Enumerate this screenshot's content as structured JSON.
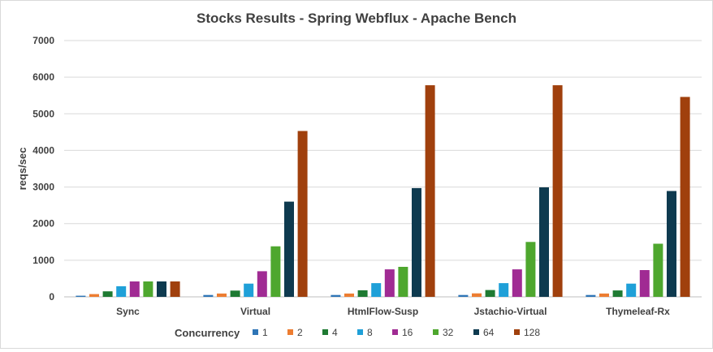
{
  "chart_data": {
    "type": "bar",
    "title": "Stocks Results - Spring Webflux - Apache Bench",
    "xlabel": "",
    "ylabel": "reqs/sec",
    "ylim": [
      0,
      7000
    ],
    "yticks": [
      0,
      1000,
      2000,
      3000,
      4000,
      5000,
      6000,
      7000
    ],
    "grid": true,
    "legend_title": "Concurrency",
    "legend_position": "bottom",
    "categories": [
      "Sync",
      "Virtual",
      "HtmlFlow-Susp",
      "Jstachio-Virtual",
      "Thymeleaf-Rx"
    ],
    "series": [
      {
        "name": "1",
        "color": "#2e75b6",
        "values": [
          30,
          50,
          50,
          50,
          50
        ]
      },
      {
        "name": "2",
        "color": "#ed7d31",
        "values": [
          75,
          90,
          90,
          95,
          90
        ]
      },
      {
        "name": "4",
        "color": "#1e7a32",
        "values": [
          150,
          170,
          180,
          185,
          175
        ]
      },
      {
        "name": "8",
        "color": "#1fa0d8",
        "values": [
          290,
          360,
          375,
          375,
          360
        ]
      },
      {
        "name": "16",
        "color": "#a02b93",
        "values": [
          420,
          700,
          750,
          750,
          730
        ]
      },
      {
        "name": "32",
        "color": "#4ea72e",
        "values": [
          420,
          1380,
          820,
          1500,
          1450
        ]
      },
      {
        "name": "64",
        "color": "#0e3a4f",
        "values": [
          420,
          2600,
          2970,
          2990,
          2890
        ]
      },
      {
        "name": "128",
        "color": "#a0400d",
        "values": [
          420,
          4530,
          5780,
          5780,
          5460
        ]
      }
    ]
  }
}
